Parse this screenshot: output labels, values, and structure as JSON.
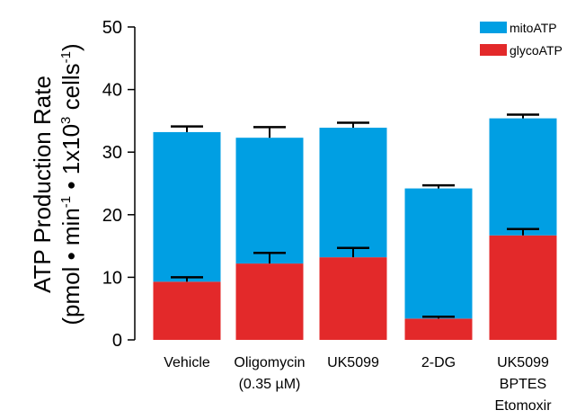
{
  "chart_data": {
    "type": "bar",
    "stacked": true,
    "categories": [
      [
        "Vehicle"
      ],
      [
        "Oligomycin",
        "(0.35 µM)"
      ],
      [
        "UK5099"
      ],
      [
        "2-DG"
      ],
      [
        "UK5099",
        "BPTES",
        "Etomoxir"
      ]
    ],
    "series": [
      {
        "name": "glycoATP",
        "color": "#e3292a",
        "values": [
          9.3,
          12.2,
          13.2,
          3.4,
          16.7
        ],
        "errors": [
          0.7,
          1.7,
          1.5,
          0.3,
          1.0
        ]
      },
      {
        "name": "mitoATP",
        "color": "#009fe3",
        "values": [
          23.9,
          20.1,
          20.7,
          20.8,
          18.7
        ],
        "errors": [
          0.9,
          1.7,
          0.8,
          0.5,
          0.6
        ]
      }
    ],
    "legend_order": [
      "mitoATP",
      "glycoATP"
    ],
    "legend_position": "top-right",
    "ylabel_line1": "ATP Production Rate",
    "ylabel_line2_parts": [
      "(pmol • min",
      "-1",
      " • 1x10",
      "3",
      " cells",
      "-1",
      ")"
    ],
    "ylim": [
      0,
      50
    ],
    "yticks": [
      0,
      10,
      20,
      30,
      40,
      50
    ],
    "grid": false
  }
}
